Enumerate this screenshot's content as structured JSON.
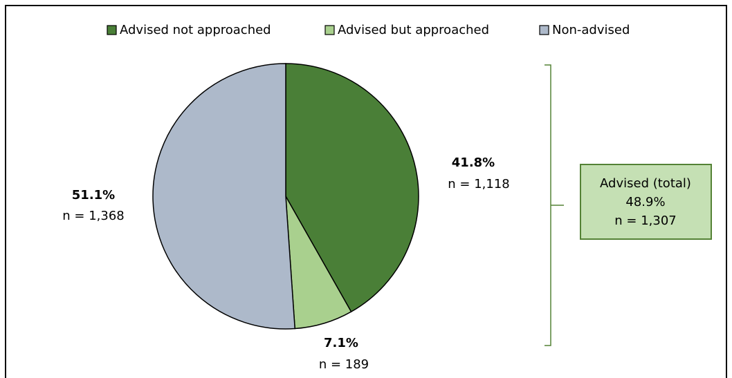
{
  "chart_data": {
    "type": "pie",
    "categories": [
      "Advised not approached",
      "Advised but approached",
      "Non-advised"
    ],
    "values": [
      41.8,
      7.1,
      51.1
    ],
    "value_labels": [
      "41.8%",
      "7.1%",
      "51.1%"
    ],
    "counts": [
      1118,
      189,
      1368
    ],
    "count_labels": [
      "n = 1,118",
      "n = 189",
      "n = 1,368"
    ],
    "colors": [
      "#4a7f37",
      "#a9d08e",
      "#adb9ca"
    ],
    "legend": "top",
    "annotation": [
      "Advised (total)",
      "48.9%",
      "n = 1,307"
    ]
  }
}
